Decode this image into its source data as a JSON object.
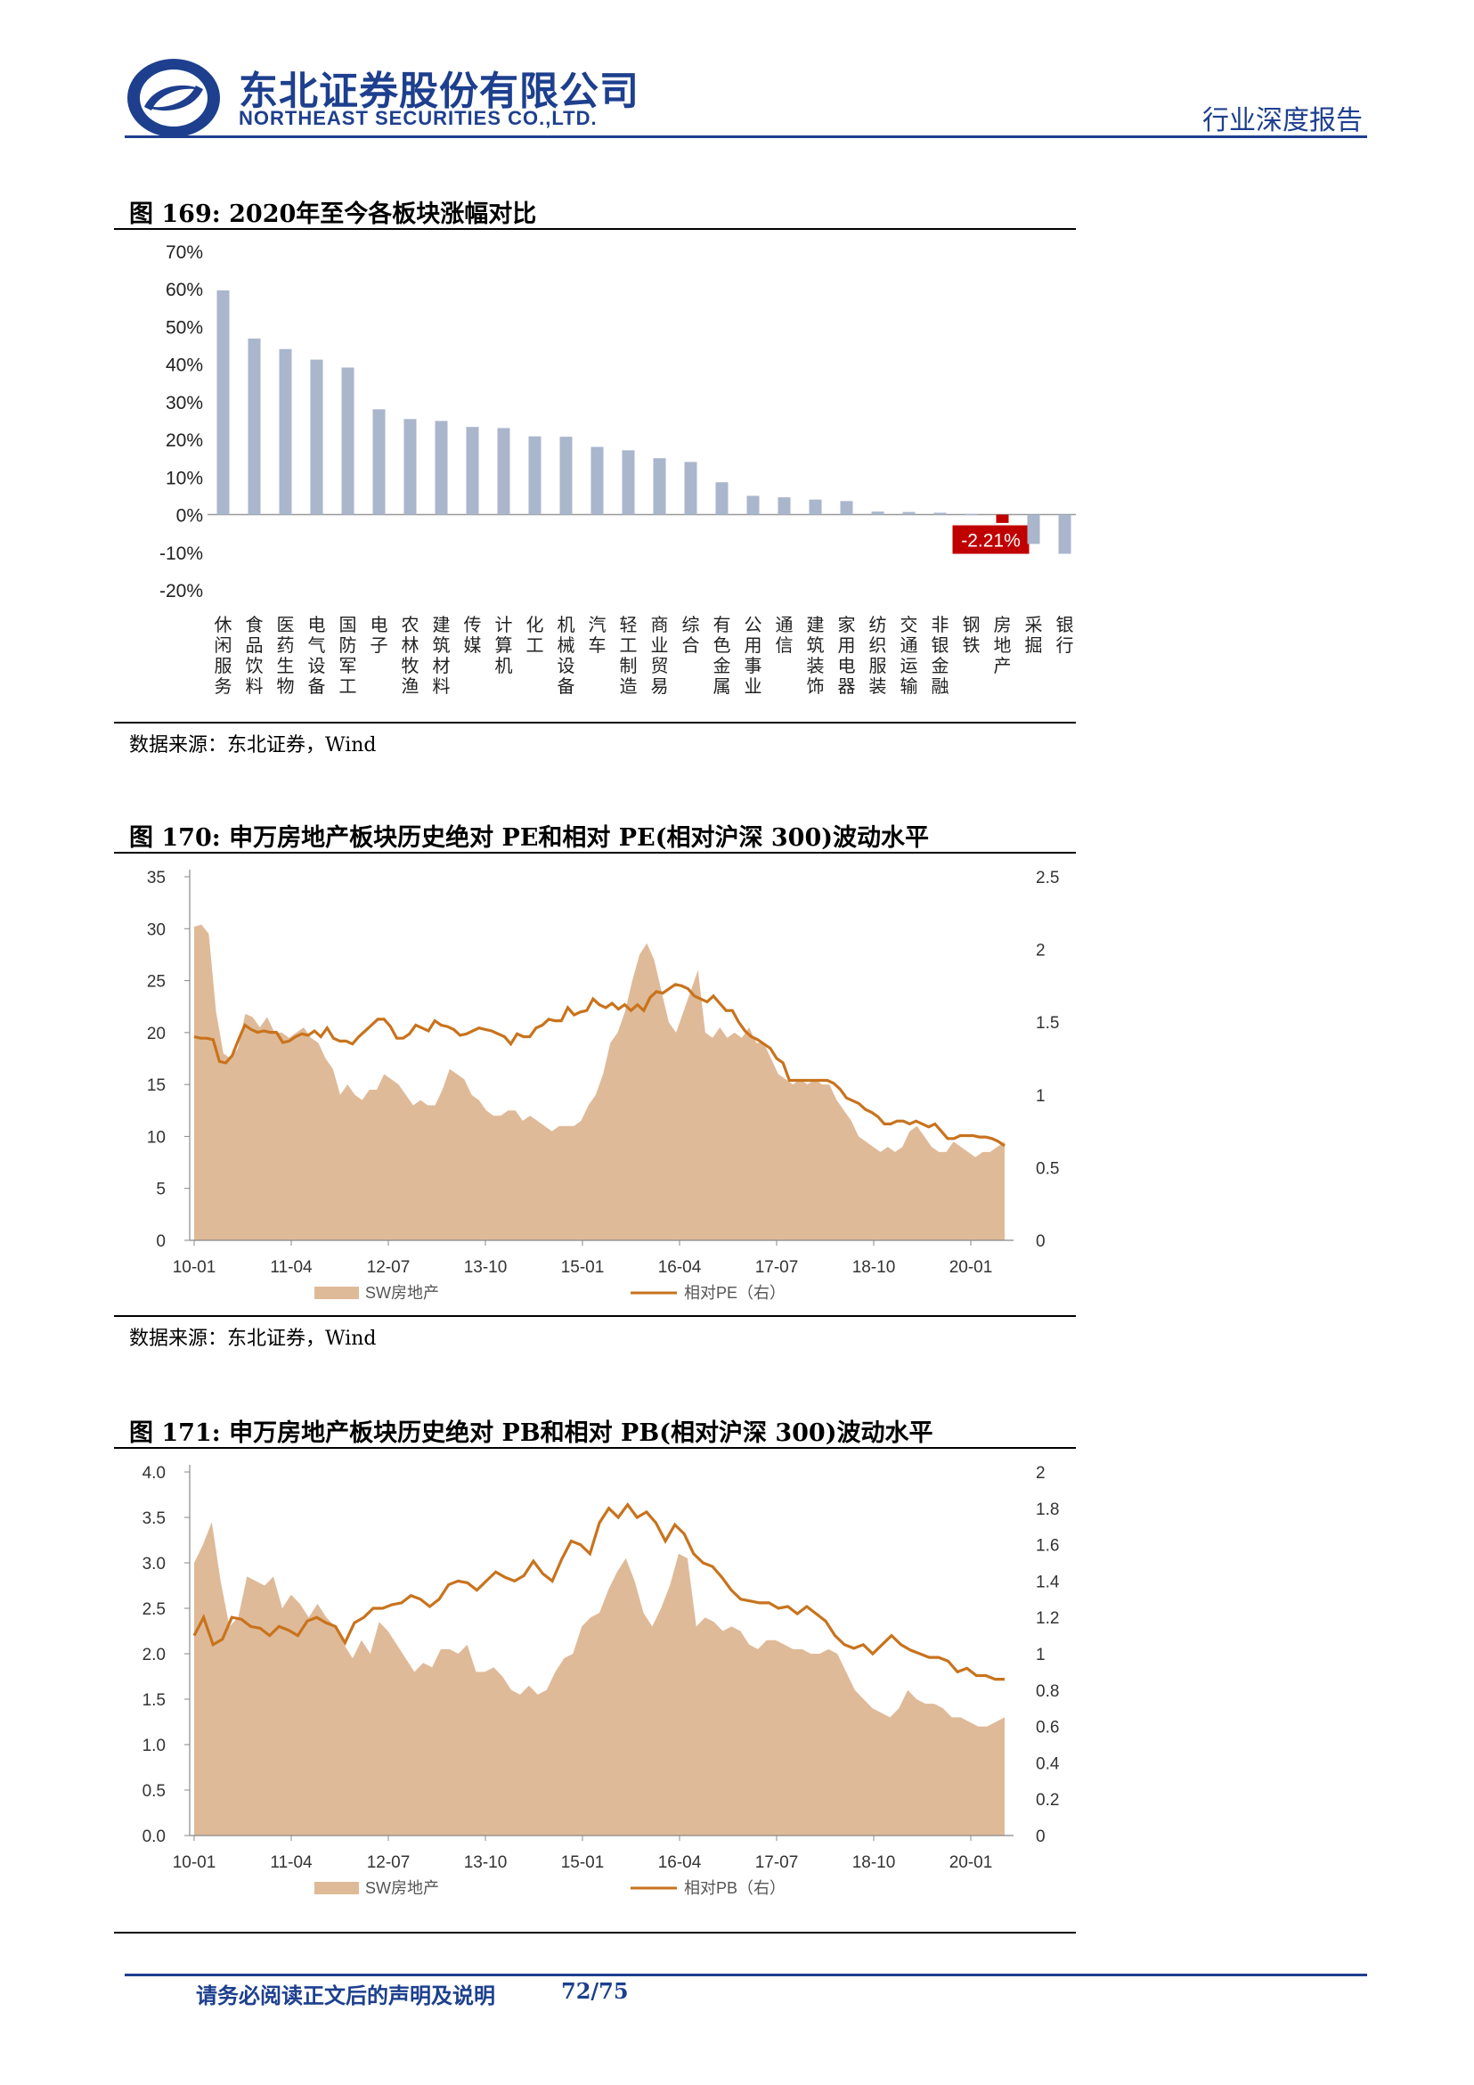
{
  "header": {
    "company_cn": "东北证券股份有限公司",
    "company_en": "NORTHEAST SECURITIES CO.,LTD.",
    "report_type": "行业深度报告",
    "brand_color": "#1d3f8e"
  },
  "figure169": {
    "title": "图 169:  2020年至今各板块涨幅对比",
    "source": "数据来源：东北证券，Wind",
    "chart_data": {
      "type": "bar",
      "categories": [
        "休闲服务",
        "食品饮料",
        "医药生物",
        "电气设备",
        "国防军工",
        "电子",
        "农林牧渔",
        "建筑材料",
        "传媒",
        "计算机",
        "化工",
        "机械设备",
        "汽车",
        "轻工制造",
        "商业贸易",
        "综合",
        "有色金属",
        "公用事业",
        "通信",
        "建筑装饰",
        "家用电器",
        "纺织服装",
        "交通运输",
        "非银金融",
        "钢铁",
        "房地产",
        "采掘",
        "银行"
      ],
      "values": [
        59.6,
        46.8,
        44.0,
        41.2,
        39.1,
        28.0,
        25.4,
        24.9,
        23.3,
        23.0,
        20.8,
        20.7,
        18.0,
        17.1,
        15.0,
        14.0,
        8.6,
        5.0,
        4.6,
        4.0,
        3.6,
        0.8,
        0.7,
        0.5,
        0.2,
        -2.21,
        -7.8,
        -10.4
      ],
      "highlight_label": "-2.21%",
      "ylim": [
        -20,
        70
      ],
      "yticks": [
        "70%",
        "60%",
        "50%",
        "40%",
        "30%",
        "20%",
        "10%",
        "0%",
        "-10%",
        "-20%"
      ],
      "bar_color": "#a9b6cb",
      "highlight_color": "#c00000"
    }
  },
  "figure170": {
    "title": "图 170:  申万房地产板块历史绝对 PE和相对 PE(相对沪深 300)波动水平",
    "source": "数据来源：东北证券，Wind",
    "chart_data": {
      "type": "area",
      "x_ticks": [
        "10-01",
        "11-04",
        "12-07",
        "13-10",
        "15-01",
        "16-04",
        "17-07",
        "18-10",
        "20-01"
      ],
      "y_left": {
        "ticks": [
          "35",
          "30",
          "25",
          "20",
          "15",
          "10",
          "5",
          "0"
        ],
        "lim": [
          0,
          35
        ]
      },
      "y_right": {
        "ticks": [
          "2.5",
          "2",
          "1.5",
          "1",
          "0.5",
          "0"
        ],
        "lim": [
          0,
          2.5
        ]
      },
      "series": [
        {
          "name": "SW房地产",
          "axis": "left",
          "color": "#dfba98",
          "values": [
            30.2,
            30.4,
            29.5,
            22.0,
            18.0,
            17.5,
            18.5,
            21.8,
            21.5,
            20.5,
            21.5,
            20.0,
            20.0,
            19.5,
            20.0,
            20.5,
            19.5,
            19.0,
            17.5,
            16.5,
            14.0,
            15.0,
            14.0,
            13.5,
            14.5,
            14.5,
            16.0,
            15.5,
            15.0,
            14.0,
            13.0,
            13.5,
            13.0,
            13.0,
            14.5,
            16.5,
            16.0,
            15.5,
            14.0,
            13.5,
            12.5,
            12.0,
            12.0,
            12.5,
            12.5,
            11.5,
            12.0,
            11.5,
            11.0,
            10.5,
            11.0,
            11.0,
            11.0,
            11.5,
            13.0,
            14.0,
            16.0,
            19.0,
            20.0,
            22.0,
            25.0,
            27.5,
            28.6,
            27.0,
            24.0,
            21.0,
            20.0,
            22.0,
            24.0,
            26.0,
            20.0,
            19.5,
            20.5,
            19.5,
            20.0,
            19.5,
            20.5,
            19.0,
            19.0,
            17.5,
            16.0,
            15.5,
            15.0,
            15.5,
            15.0,
            15.5,
            15.0,
            15.0,
            13.5,
            12.5,
            11.5,
            10.0,
            9.5,
            9.0,
            8.5,
            9.0,
            8.5,
            9.0,
            10.5,
            11.0,
            10.0,
            9.0,
            8.5,
            8.5,
            9.5,
            9.0,
            8.5,
            8.0,
            8.5,
            8.5,
            9.0,
            9.5
          ]
        },
        {
          "name": "相对PE（右）",
          "axis": "right",
          "color": "#c8731d",
          "values": [
            1.4,
            1.39,
            1.39,
            1.38,
            1.23,
            1.22,
            1.27,
            1.38,
            1.48,
            1.45,
            1.43,
            1.44,
            1.43,
            1.43,
            1.36,
            1.37,
            1.4,
            1.42,
            1.41,
            1.44,
            1.4,
            1.46,
            1.39,
            1.37,
            1.37,
            1.35,
            1.4,
            1.44,
            1.48,
            1.52,
            1.52,
            1.47,
            1.39,
            1.39,
            1.42,
            1.48,
            1.46,
            1.44,
            1.51,
            1.48,
            1.47,
            1.45,
            1.41,
            1.42,
            1.44,
            1.46,
            1.45,
            1.44,
            1.42,
            1.4,
            1.35,
            1.42,
            1.4,
            1.4,
            1.46,
            1.48,
            1.52,
            1.51,
            1.51,
            1.6,
            1.55,
            1.57,
            1.58,
            1.66,
            1.62,
            1.6,
            1.63,
            1.59,
            1.62,
            1.58,
            1.62,
            1.58,
            1.67,
            1.71,
            1.7,
            1.73,
            1.76,
            1.75,
            1.73,
            1.68,
            1.66,
            1.64,
            1.68,
            1.63,
            1.58,
            1.58,
            1.5,
            1.44,
            1.4,
            1.38,
            1.35,
            1.32,
            1.25,
            1.22,
            1.1,
            1.1,
            1.1,
            1.1,
            1.1,
            1.1,
            1.1,
            1.08,
            1.04,
            0.98,
            0.96,
            0.94,
            0.9,
            0.88,
            0.85,
            0.8,
            0.8,
            0.82,
            0.82,
            0.8,
            0.82,
            0.8,
            0.78,
            0.8,
            0.75,
            0.7,
            0.7,
            0.72,
            0.72,
            0.72,
            0.71,
            0.71,
            0.7,
            0.68,
            0.65
          ]
        }
      ]
    }
  },
  "figure171": {
    "title": "图 171:  申万房地产板块历史绝对 PB和相对 PB(相对沪深 300)波动水平",
    "chart_data": {
      "type": "area",
      "x_ticks": [
        "10-01",
        "11-04",
        "12-07",
        "13-10",
        "15-01",
        "16-04",
        "17-07",
        "18-10",
        "20-01"
      ],
      "y_left": {
        "ticks": [
          "4.0",
          "3.5",
          "3.0",
          "2.5",
          "2.0",
          "1.5",
          "1.0",
          "0.5",
          "0.0"
        ],
        "lim": [
          0,
          4
        ]
      },
      "y_right": {
        "ticks": [
          "2",
          "1.8",
          "1.6",
          "1.4",
          "1.2",
          "1",
          "0.8",
          "0.6",
          "0.4",
          "0.2",
          "0"
        ],
        "lim": [
          0,
          2
        ]
      },
      "series": [
        {
          "name": "SW房地产",
          "axis": "left",
          "color": "#dfba98",
          "values": [
            3.0,
            3.2,
            3.45,
            2.8,
            2.3,
            2.4,
            2.85,
            2.8,
            2.75,
            2.85,
            2.5,
            2.65,
            2.55,
            2.4,
            2.55,
            2.4,
            2.3,
            2.1,
            1.95,
            2.15,
            2.0,
            2.35,
            2.25,
            2.1,
            1.95,
            1.8,
            1.9,
            1.85,
            2.05,
            2.05,
            2.0,
            2.1,
            1.8,
            1.8,
            1.85,
            1.75,
            1.6,
            1.55,
            1.65,
            1.55,
            1.6,
            1.8,
            1.95,
            2.0,
            2.3,
            2.4,
            2.45,
            2.7,
            2.9,
            3.05,
            2.8,
            2.45,
            2.3,
            2.5,
            2.75,
            3.1,
            3.05,
            2.3,
            2.4,
            2.35,
            2.25,
            2.3,
            2.25,
            2.1,
            2.05,
            2.15,
            2.15,
            2.1,
            2.05,
            2.05,
            2.0,
            2.0,
            2.05,
            2.0,
            1.8,
            1.6,
            1.5,
            1.4,
            1.35,
            1.3,
            1.4,
            1.6,
            1.5,
            1.45,
            1.45,
            1.4,
            1.3,
            1.3,
            1.25,
            1.2,
            1.2,
            1.25,
            1.3
          ]
        },
        {
          "name": "相对PB（右）",
          "axis": "right",
          "color": "#c8731d",
          "values": [
            1.1,
            1.2,
            1.05,
            1.08,
            1.2,
            1.19,
            1.15,
            1.14,
            1.1,
            1.15,
            1.13,
            1.1,
            1.18,
            1.2,
            1.17,
            1.15,
            1.06,
            1.17,
            1.2,
            1.25,
            1.25,
            1.27,
            1.28,
            1.32,
            1.3,
            1.26,
            1.3,
            1.38,
            1.4,
            1.39,
            1.35,
            1.4,
            1.45,
            1.42,
            1.4,
            1.43,
            1.51,
            1.44,
            1.4,
            1.52,
            1.62,
            1.6,
            1.55,
            1.72,
            1.8,
            1.75,
            1.82,
            1.75,
            1.78,
            1.72,
            1.62,
            1.71,
            1.66,
            1.55,
            1.5,
            1.48,
            1.42,
            1.35,
            1.3,
            1.29,
            1.28,
            1.28,
            1.25,
            1.26,
            1.22,
            1.26,
            1.22,
            1.18,
            1.1,
            1.05,
            1.03,
            1.05,
            1.0,
            1.05,
            1.1,
            1.05,
            1.02,
            1.0,
            0.98,
            0.98,
            0.96,
            0.9,
            0.92,
            0.88,
            0.88,
            0.86,
            0.86
          ]
        }
      ]
    }
  },
  "footer": {
    "disclaimer": "请务必阅读正文后的声明及说明",
    "page": "72/75"
  }
}
